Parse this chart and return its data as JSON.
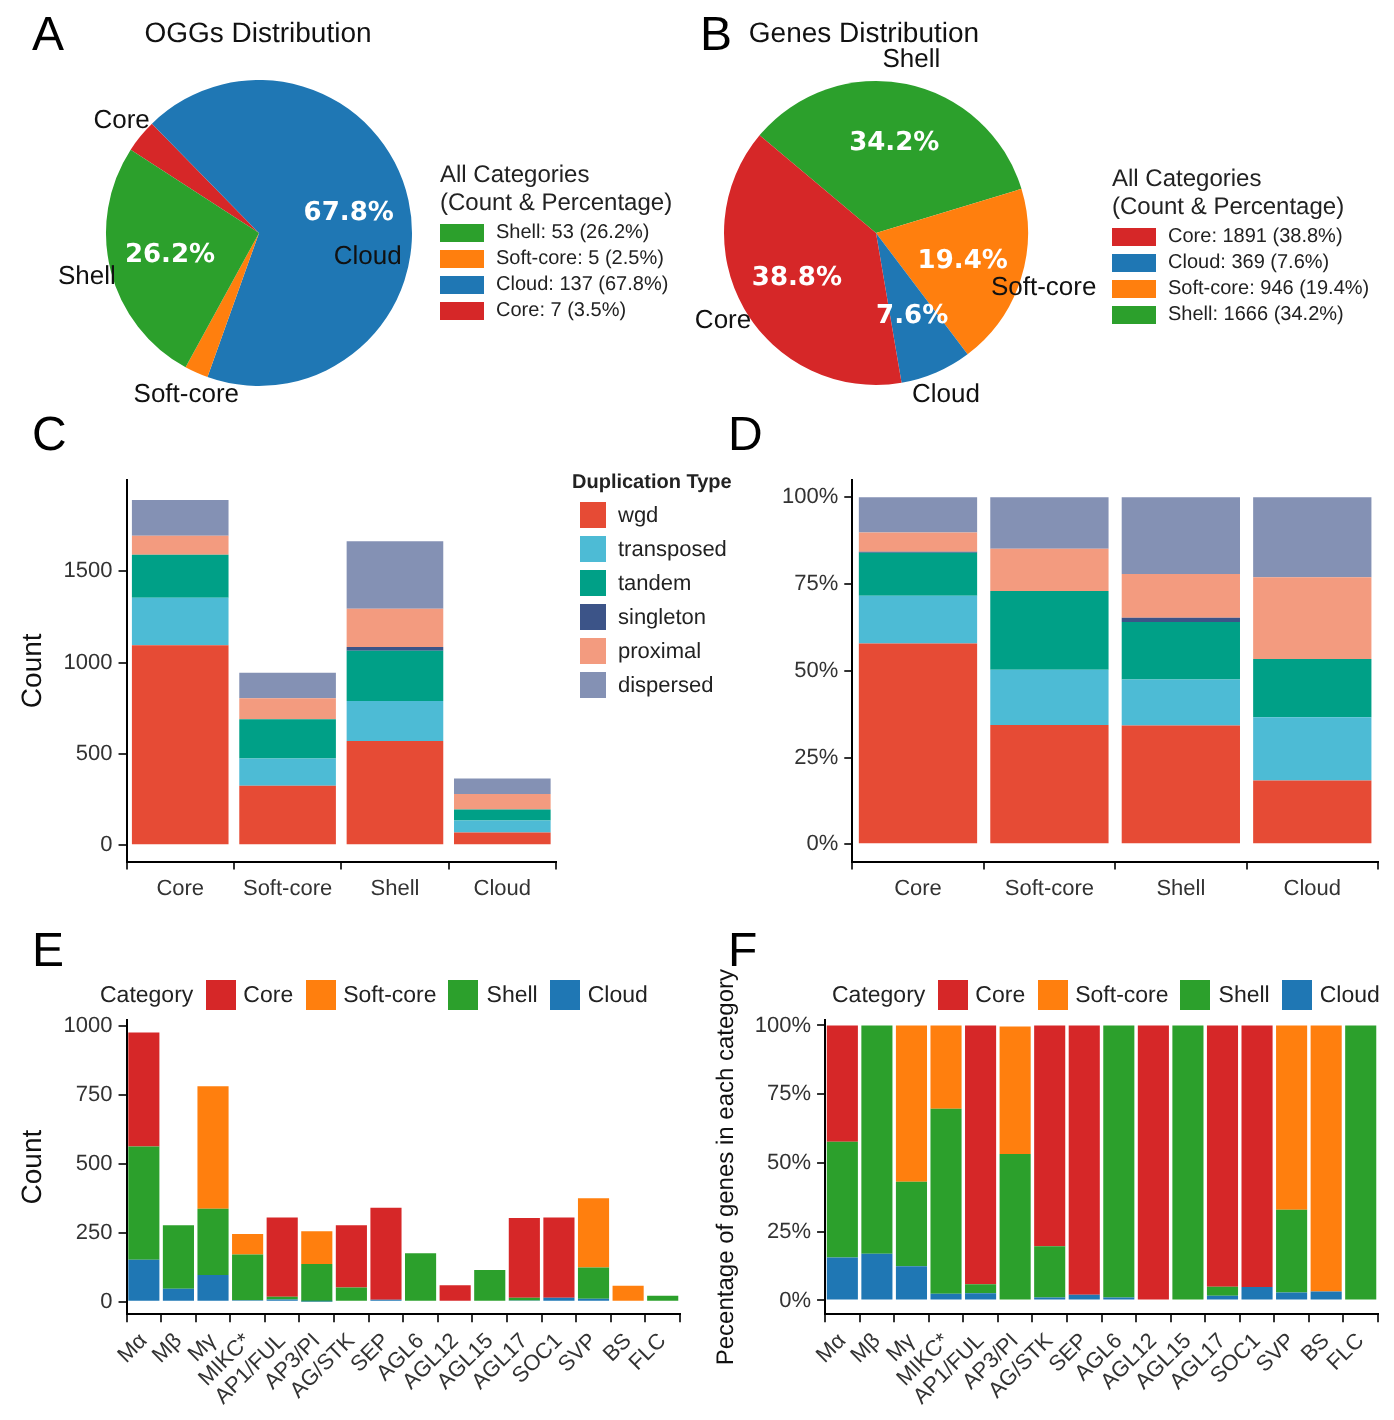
{
  "chart_data": [
    {
      "type": "pie",
      "title": "OGGs Distribution",
      "categories": [
        "Shell",
        "Soft-core",
        "Cloud",
        "Core"
      ],
      "values": [
        26.2,
        2.5,
        67.8,
        3.5
      ],
      "colors": [
        "#2ca02c",
        "#ff7f0e",
        "#1f77b4",
        "#d62728"
      ],
      "value_labels": [
        "26.2%",
        null,
        "67.8%",
        null
      ],
      "legend": "right",
      "legend_title": "All Categories\n(Count & Percentage)",
      "annotations": [
        "A",
        ": 53 (26.2%)",
        ": 5 (2.5%)",
        ": 137 (67.8%)",
        ": 7 (3.5%)"
      ]
    },
    {
      "type": "pie",
      "title": "Genes Distribution",
      "categories": [
        "Core",
        "Cloud",
        "Soft-core",
        "Shell"
      ],
      "values": [
        38.8,
        7.6,
        19.4,
        34.2
      ],
      "colors": [
        "#d62728",
        "#1f77b4",
        "#ff7f0e",
        "#2ca02c"
      ],
      "value_labels": [
        "38.8%",
        "7.6%",
        "19.4%",
        "34.2%"
      ],
      "legend": "right",
      "legend_title": "All Categories\n(Count & Percentage)",
      "annotations": [
        "B",
        ": 1891 (38.8%)",
        ": 369 (7.6%)",
        ": 946 (19.4%)",
        ": 1666 (34.2%)"
      ]
    },
    {
      "type": "bar",
      "stacked": true,
      "categories": [
        "Core",
        "Soft-core",
        "Shell",
        "Cloud"
      ],
      "ylabel": "Count",
      "ylim": [
        -90,
        2000
      ],
      "yticks": [
        0,
        500,
        1000,
        1500
      ],
      "legend": "right",
      "legend_title": "Duplication Type",
      "annotations": [
        "C"
      ],
      "series": [
        {
          "name": "wgd",
          "color": "#e64b35",
          "values": [
            1095,
            325,
            570,
            70
          ]
        },
        {
          "name": "transposed",
          "color": "#4dbbd5",
          "values": [
            260,
            150,
            220,
            65
          ]
        },
        {
          "name": "tandem",
          "color": "#00a087",
          "values": [
            235,
            215,
            275,
            60
          ]
        },
        {
          "name": "singleton",
          "color": "#3c5488",
          "values": [
            0,
            0,
            20,
            0
          ]
        },
        {
          "name": "proximal",
          "color": "#f39b7f",
          "values": [
            105,
            115,
            210,
            85
          ]
        },
        {
          "name": "dispersed",
          "color": "#8491b4",
          "values": [
            195,
            140,
            370,
            85
          ]
        }
      ]
    },
    {
      "type": "bar",
      "stacked": true,
      "categories": [
        "Core",
        "Soft-core",
        "Shell",
        "Cloud"
      ],
      "ylim": [
        -5,
        105
      ],
      "yticks": [
        {
          "value": 0,
          "label": "0%"
        },
        {
          "value": 25,
          "label": "25%"
        },
        {
          "value": 50,
          "label": "50%"
        },
        {
          "value": 75,
          "label": "75%"
        },
        {
          "value": 100,
          "label": "100%"
        }
      ],
      "annotations": [
        "D"
      ],
      "series": [
        {
          "color": "#e64b35",
          "values": [
            57.9,
            34.4,
            34.2,
            18.4
          ]
        },
        {
          "color": "#4dbbd5",
          "values": [
            13.7,
            15.9,
            13.3,
            18.2
          ]
        },
        {
          "color": "#00a087",
          "values": [
            12.4,
            22.7,
            16.6,
            16.8
          ]
        },
        {
          "color": "#3c5488",
          "values": [
            0.3,
            0,
            1.2,
            0
          ]
        },
        {
          "color": "#f39b7f",
          "values": [
            5.6,
            12.2,
            12.6,
            23.6
          ]
        },
        {
          "color": "#8491b4",
          "values": [
            10.1,
            14.8,
            22.1,
            23.0
          ]
        }
      ]
    },
    {
      "type": "bar",
      "stacked": true,
      "categories": [
        "Mα",
        "Mβ",
        "Mγ",
        "MIKC*",
        "AP1/FUL",
        "AP3/PI",
        "AG/STK",
        "SEP",
        "AGL6",
        "AGL12",
        "AGL15",
        "AGL17",
        "SOC1",
        "SVP",
        "BS",
        "FLC"
      ],
      "ylabel": "Count",
      "ylim": [
        -45,
        1020
      ],
      "yticks": [
        0,
        250,
        500,
        750,
        1000
      ],
      "legend": "top",
      "legend_title": "Category",
      "annotations": [
        "E"
      ],
      "series": [
        {
          "name": "Cloud",
          "color": "#1f77b4",
          "values": [
            152,
            47,
            97,
            6,
            8,
            1,
            null,
            7,
            null,
            0,
            0,
            5,
            15,
            11,
            null,
            0
          ]
        },
        {
          "name": "Shell",
          "color": "#2ca02c",
          "values": [
            410,
            230,
            240,
            165,
            10,
            136,
            52,
            0,
            176,
            0,
            115,
            10,
            0,
            113,
            0,
            22
          ]
        },
        {
          "name": "Soft-core",
          "color": "#ff7f0e",
          "values": [
            0,
            0,
            443,
            74,
            0,
            118,
            0,
            0,
            0,
            0,
            0,
            0,
            0,
            251,
            58,
            0
          ]
        },
        {
          "name": "Core",
          "color": "#d62728",
          "values": [
            413,
            0,
            0,
            0,
            287,
            0,
            225,
            333,
            0,
            60,
            0,
            288,
            290,
            0,
            0,
            0
          ]
        }
      ]
    },
    {
      "type": "bar",
      "stacked": true,
      "categories": [
        "Mα",
        "Mβ",
        "Mγ",
        "MIKC*",
        "AP1/FUL",
        "AP3/PI",
        "AG/STK",
        "SEP",
        "AGL6",
        "AGL12",
        "AGL15",
        "AGL17",
        "SOC1",
        "SVP",
        "BS",
        "FLC"
      ],
      "ylabel": "Pecentage of genes in each category",
      "ylim": [
        -5,
        102
      ],
      "yticks": [
        {
          "value": 0,
          "label": "0%"
        },
        {
          "value": 25,
          "label": "25%"
        },
        {
          "value": 50,
          "label": "50%"
        },
        {
          "value": 75,
          "label": "75%"
        },
        {
          "value": 100,
          "label": "100%"
        }
      ],
      "legend": "top",
      "legend_title": "Category",
      "annotations": [
        "F"
      ],
      "series": [
        {
          "name": "Cloud",
          "color": "#1f77b4",
          "values": [
            15.6,
            17.0,
            12.4,
            2.4,
            2.6,
            null,
            1.1,
            2.1,
            1.1,
            0,
            0,
            1.7,
            4.9,
            2.9,
            3.3,
            0
          ]
        },
        {
          "name": "Shell",
          "color": "#2ca02c",
          "values": [
            42.1,
            83.0,
            30.8,
            67.3,
            3.3,
            53.3,
            18.6,
            0,
            98.9,
            0,
            100,
            3.3,
            0,
            30.1,
            0,
            100
          ]
        },
        {
          "name": "Soft-core",
          "color": "#ff7f0e",
          "values": [
            0,
            0,
            56.8,
            30.3,
            0,
            46.3,
            0,
            0,
            0,
            0,
            0,
            0,
            0,
            67.0,
            96.7,
            0
          ]
        },
        {
          "name": "Core",
          "color": "#d62728",
          "values": [
            42.3,
            0,
            0,
            0,
            94.1,
            0,
            80.3,
            97.9,
            0,
            100,
            0,
            95.0,
            95.1,
            0,
            0,
            0
          ]
        }
      ]
    }
  ]
}
